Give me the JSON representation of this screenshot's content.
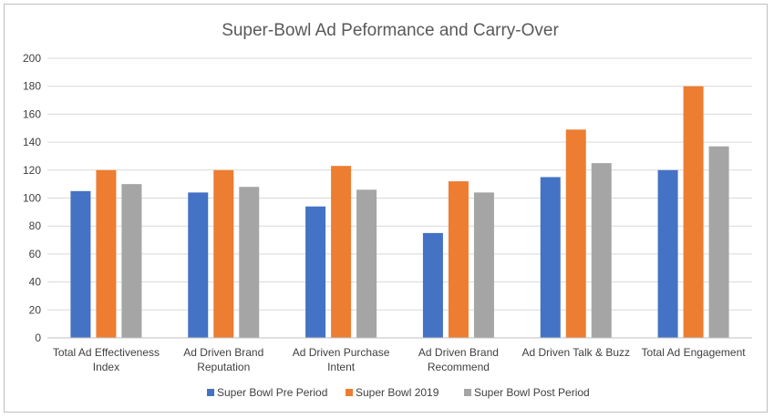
{
  "chart_data": {
    "type": "bar",
    "title": "Super-Bowl Ad Peformance and Carry-Over",
    "categories": [
      [
        "Total Ad Effectiveness",
        "Index"
      ],
      [
        "Ad Driven Brand",
        "Reputation"
      ],
      [
        "Ad Driven Purchase",
        "Intent"
      ],
      [
        "Ad Driven Brand",
        "Recommend"
      ],
      [
        "Ad Driven Talk & Buzz"
      ],
      [
        "Total Ad Engagement"
      ]
    ],
    "series": [
      {
        "name": "Super Bowl Pre Period",
        "color": "#4472C4",
        "values": [
          105,
          104,
          94,
          75,
          115,
          120
        ]
      },
      {
        "name": "Super Bowl 2019",
        "color": "#ED7D31",
        "values": [
          120,
          120,
          123,
          112,
          149,
          180
        ]
      },
      {
        "name": "Super Bowl Post Period",
        "color": "#A5A5A5",
        "values": [
          110,
          108,
          106,
          104,
          125,
          137
        ]
      }
    ],
    "ylim": [
      0,
      200
    ],
    "yticks": [
      0,
      20,
      40,
      60,
      80,
      100,
      120,
      140,
      160,
      180,
      200
    ],
    "grid": true,
    "legend_position": "bottom"
  }
}
